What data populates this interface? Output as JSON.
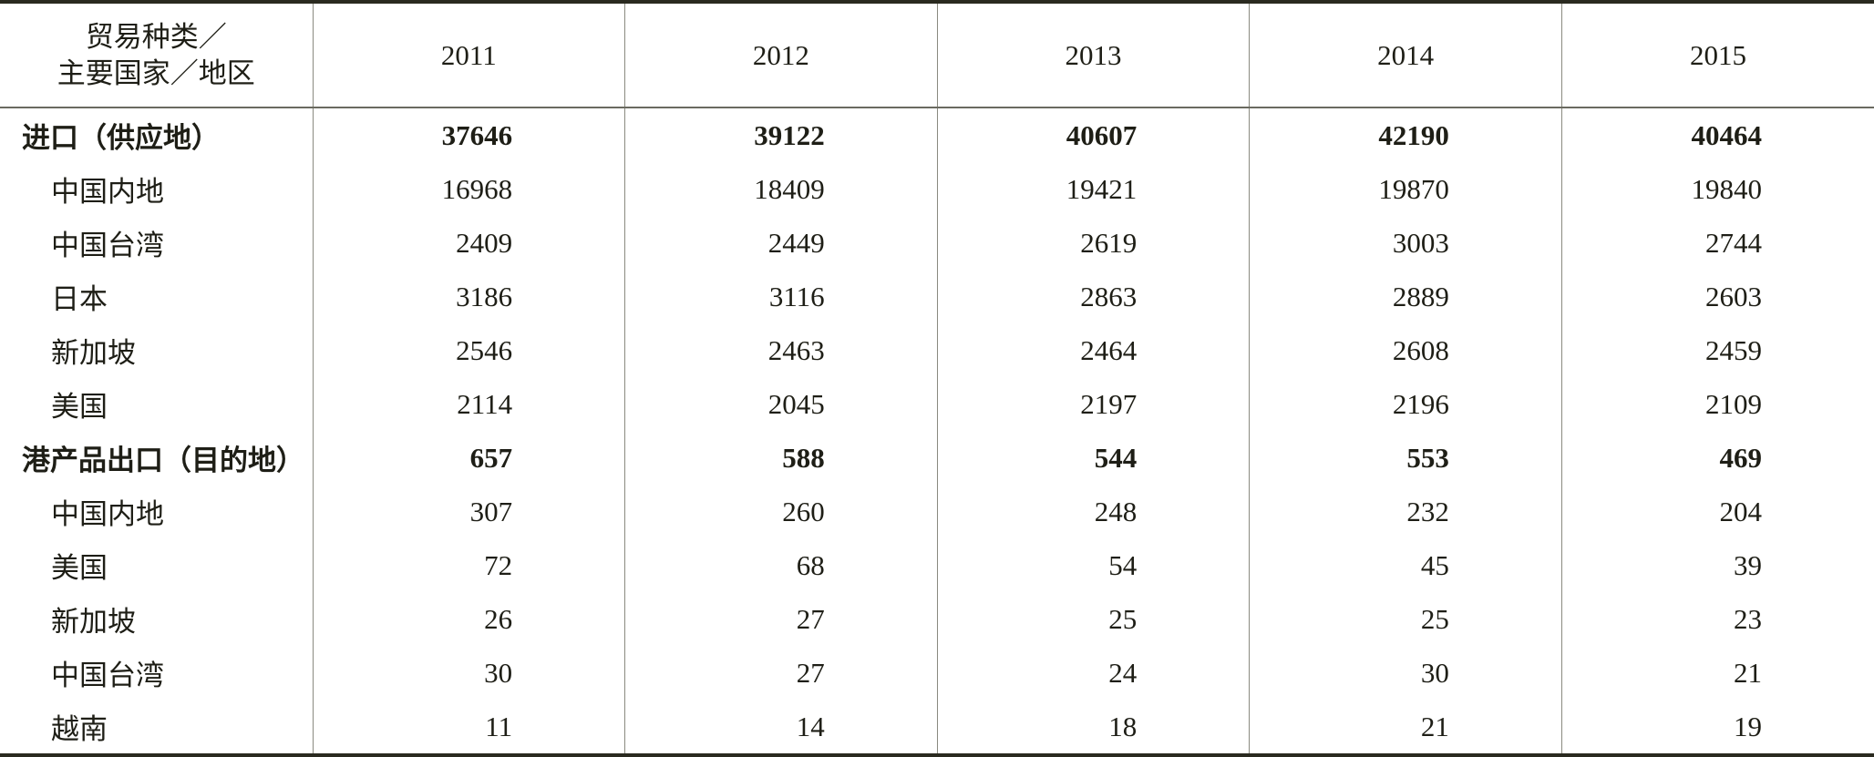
{
  "table": {
    "corner": [
      "贸易种类／",
      "主要国家／地区"
    ],
    "columns": [
      2011,
      2012,
      2013,
      2014,
      2015
    ],
    "groups": [
      {
        "label": "进口（供应地）",
        "values": [
          37646,
          39122,
          40607,
          42190,
          40464
        ],
        "items": [
          {
            "label": "中国内地",
            "values": [
              16968,
              18409,
              19421,
              19870,
              19840
            ]
          },
          {
            "label": "中国台湾",
            "values": [
              2409,
              2449,
              2619,
              3003,
              2744
            ]
          },
          {
            "label": "日本",
            "values": [
              3186,
              3116,
              2863,
              2889,
              2603
            ]
          },
          {
            "label": "新加坡",
            "values": [
              2546,
              2463,
              2464,
              2608,
              2459
            ]
          },
          {
            "label": "美国",
            "values": [
              2114,
              2045,
              2197,
              2196,
              2109
            ]
          }
        ]
      },
      {
        "label": "港产品出口（目的地）",
        "values": [
          657,
          588,
          544,
          553,
          469
        ],
        "items": [
          {
            "label": "中国内地",
            "values": [
              307,
              260,
              248,
              232,
              204
            ]
          },
          {
            "label": "美国",
            "values": [
              72,
              68,
              54,
              45,
              39
            ]
          },
          {
            "label": "新加坡",
            "values": [
              26,
              27,
              25,
              25,
              23
            ]
          },
          {
            "label": "中国台湾",
            "values": [
              30,
              27,
              24,
              30,
              21
            ]
          },
          {
            "label": "越南",
            "values": [
              11,
              14,
              18,
              21,
              19
            ]
          }
        ]
      }
    ]
  }
}
